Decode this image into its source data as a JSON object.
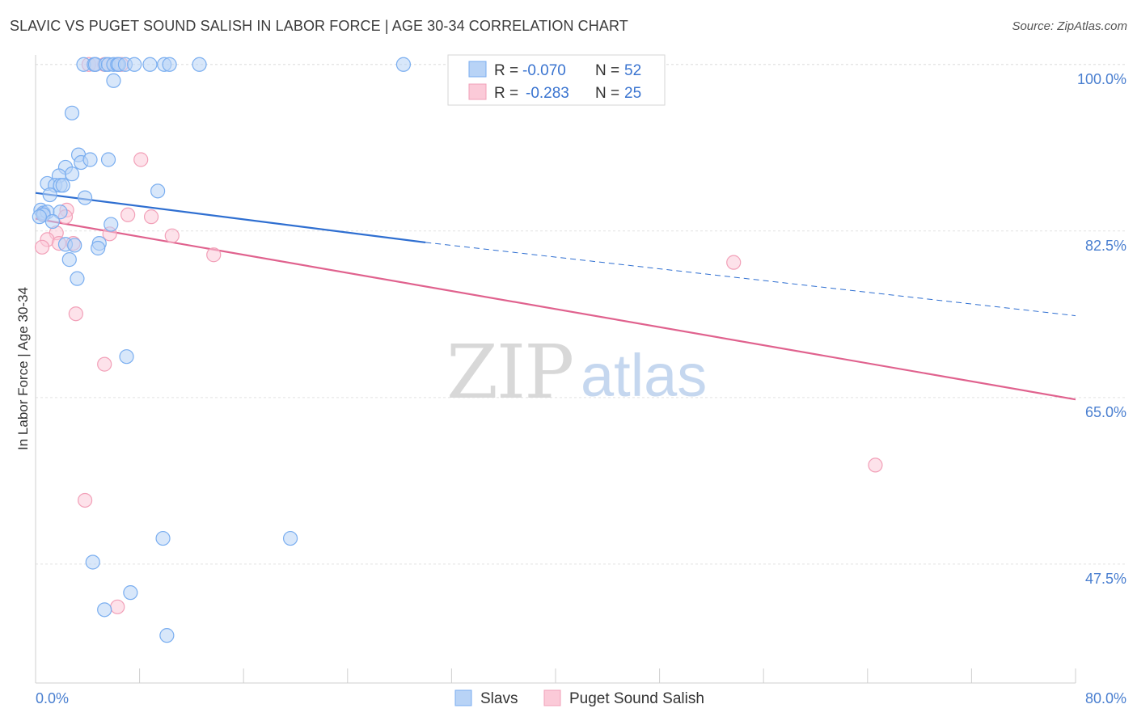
{
  "title": "SLAVIC VS PUGET SOUND SALISH IN LABOR FORCE | AGE 30-34 CORRELATION CHART",
  "source": "Source: ZipAtlas.com",
  "watermark": {
    "zip": "ZIP",
    "atlas": "atlas"
  },
  "legend_top": [
    {
      "r_label": "R =",
      "r_value": "-0.070",
      "n_label": "N =",
      "n_value": "52",
      "color": "#7aaef0"
    },
    {
      "r_label": "R =",
      "r_value": "-0.283",
      "n_label": "N =",
      "n_value": "25",
      "color": "#f2a0b8"
    }
  ],
  "legend_bottom": [
    {
      "label": "Slavs",
      "color": "#7aaef0"
    },
    {
      "label": "Puget Sound Salish",
      "color": "#f2a0b8"
    }
  ],
  "colors": {
    "slavs": "#7aaef0",
    "salish": "#f2a0b8",
    "slavs_line": "#2f6fd1",
    "salish_line": "#e0628e",
    "tick": "#4a7fd0"
  },
  "chart_data": {
    "type": "scatter",
    "title": "SLAVIC VS PUGET SOUND SALISH IN LABOR FORCE | AGE 30-34 CORRELATION CHART",
    "xlabel": "",
    "ylabel": "In Labor Force | Age 30-34",
    "xlim": [
      0,
      80
    ],
    "ylim": [
      35,
      101
    ],
    "x_tick_labels": [
      {
        "value": 0,
        "label": "0.0%"
      },
      {
        "value": 80,
        "label": "80.0%"
      }
    ],
    "y_tick_labels": [
      {
        "value": 100,
        "label": "100.0%"
      },
      {
        "value": 82.5,
        "label": "82.5%"
      },
      {
        "value": 65,
        "label": "65.0%"
      },
      {
        "value": 47.5,
        "label": "47.5%"
      }
    ],
    "grid": true,
    "series": [
      {
        "name": "Slavs",
        "r": -0.07,
        "n": 52,
        "trend": {
          "x0": 0,
          "y0": 86.5,
          "x1": 30,
          "y1": 81.3,
          "dashed_to_x": 80,
          "dashed_to_y": 73.6
        },
        "points": [
          [
            3.7,
            100
          ],
          [
            4.5,
            100
          ],
          [
            4.6,
            100
          ],
          [
            5.4,
            100
          ],
          [
            5.6,
            100
          ],
          [
            6.0,
            100
          ],
          [
            6.3,
            100
          ],
          [
            6.4,
            100
          ],
          [
            6.9,
            100
          ],
          [
            7.6,
            100
          ],
          [
            8.8,
            100
          ],
          [
            9.9,
            100
          ],
          [
            10.3,
            100
          ],
          [
            12.6,
            100
          ],
          [
            28.3,
            100
          ],
          [
            6.0,
            98.3
          ],
          [
            2.8,
            94.9
          ],
          [
            3.3,
            90.5
          ],
          [
            3.5,
            89.7
          ],
          [
            5.6,
            90.0
          ],
          [
            4.2,
            90.0
          ],
          [
            2.3,
            89.2
          ],
          [
            2.8,
            88.5
          ],
          [
            1.8,
            88.3
          ],
          [
            0.9,
            87.5
          ],
          [
            1.5,
            87.3
          ],
          [
            1.9,
            87.3
          ],
          [
            2.1,
            87.3
          ],
          [
            1.1,
            86.3
          ],
          [
            9.4,
            86.7
          ],
          [
            3.8,
            86.0
          ],
          [
            0.4,
            84.7
          ],
          [
            0.6,
            84.4
          ],
          [
            0.9,
            84.5
          ],
          [
            1.9,
            84.5
          ],
          [
            0.6,
            84.2
          ],
          [
            1.3,
            83.5
          ],
          [
            5.8,
            83.2
          ],
          [
            2.3,
            81.1
          ],
          [
            3.0,
            81.0
          ],
          [
            4.9,
            81.2
          ],
          [
            4.8,
            80.7
          ],
          [
            2.6,
            79.5
          ],
          [
            3.2,
            77.5
          ],
          [
            7.0,
            69.3
          ],
          [
            9.8,
            50.2
          ],
          [
            19.6,
            50.2
          ],
          [
            4.4,
            47.7
          ],
          [
            7.3,
            44.5
          ],
          [
            5.3,
            42.7
          ],
          [
            10.1,
            40.0
          ],
          [
            0.3,
            84.0
          ]
        ]
      },
      {
        "name": "Puget Sound Salish",
        "r": -0.283,
        "n": 25,
        "trend": {
          "x0": 0,
          "y0": 83.8,
          "x1": 80,
          "y1": 64.8
        },
        "points": [
          [
            4.1,
            100
          ],
          [
            4.6,
            100
          ],
          [
            5.3,
            100
          ],
          [
            6.3,
            100
          ],
          [
            6.6,
            100
          ],
          [
            8.1,
            90.0
          ],
          [
            2.4,
            84.7
          ],
          [
            7.1,
            84.2
          ],
          [
            8.9,
            84.0
          ],
          [
            2.3,
            84.0
          ],
          [
            0.6,
            84.3
          ],
          [
            1.6,
            82.3
          ],
          [
            5.7,
            82.2
          ],
          [
            10.5,
            82.0
          ],
          [
            0.9,
            81.6
          ],
          [
            1.8,
            81.2
          ],
          [
            2.9,
            81.2
          ],
          [
            0.5,
            80.8
          ],
          [
            13.7,
            80.0
          ],
          [
            53.7,
            79.2
          ],
          [
            3.1,
            73.8
          ],
          [
            5.3,
            68.5
          ],
          [
            3.8,
            54.2
          ],
          [
            6.3,
            43.0
          ],
          [
            64.6,
            57.9
          ]
        ]
      }
    ]
  }
}
